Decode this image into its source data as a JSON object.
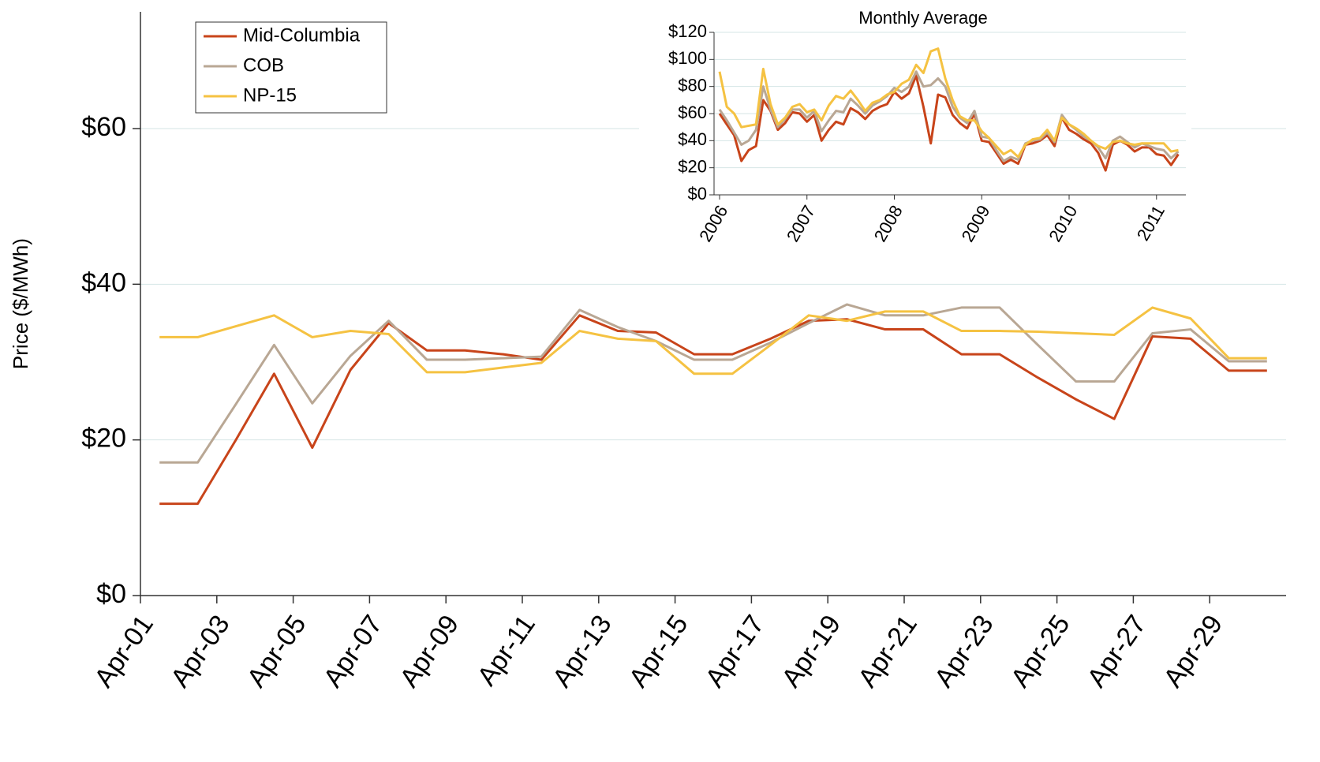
{
  "chart_data": [
    {
      "type": "line",
      "y_label": "Price ($/MWh)",
      "categories": [
        "Apr-01",
        null,
        "Apr-03",
        null,
        "Apr-05",
        null,
        "Apr-07",
        null,
        "Apr-09",
        null,
        "Apr-11",
        null,
        "Apr-13",
        null,
        "Apr-15",
        null,
        "Apr-17",
        null,
        "Apr-19",
        null,
        "Apr-21",
        null,
        "Apr-23",
        null,
        "Apr-25",
        null,
        "Apr-27",
        null,
        "Apr-29",
        null
      ],
      "series": [
        {
          "name": "Mid-Columbia",
          "color": "#c8441a",
          "values": [
            11.8,
            11.8,
            20,
            28.5,
            19,
            29,
            35,
            31.5,
            31.5,
            31,
            30.3,
            36,
            34,
            33.8,
            31,
            31,
            33,
            35.3,
            35.5,
            34.2,
            34.2,
            31,
            31,
            28,
            25.2,
            22.7,
            33.3,
            33,
            28.9,
            28.9
          ]
        },
        {
          "name": "COB",
          "color": "#b9a794",
          "values": [
            17.1,
            17.1,
            24.6,
            32.2,
            24.7,
            30.8,
            35.3,
            30.3,
            30.3,
            30.5,
            30.7,
            36.7,
            34.5,
            32.7,
            30.3,
            30.3,
            32.5,
            35,
            37.4,
            36,
            36,
            37,
            37,
            32.2,
            27.5,
            27.5,
            33.7,
            34.2,
            30.1,
            30.1
          ]
        },
        {
          "name": "NP-15",
          "color": "#f5c242",
          "values": [
            33.2,
            33.2,
            34.6,
            36,
            33.2,
            34,
            33.6,
            28.7,
            28.7,
            29.3,
            29.9,
            34,
            33,
            32.7,
            28.5,
            28.5,
            32.2,
            36,
            35.3,
            36.5,
            36.5,
            34,
            34,
            33.9,
            33.7,
            33.5,
            37,
            35.6,
            30.5,
            30.5
          ]
        }
      ],
      "ylim": [
        0,
        75
      ],
      "yticks": [
        {
          "value": 0,
          "label": "$0"
        },
        {
          "value": 20,
          "label": "$20"
        },
        {
          "value": 40,
          "label": "$40"
        },
        {
          "value": 60,
          "label": "$60"
        }
      ],
      "grid": true,
      "legend": "upper-left"
    },
    {
      "type": "line",
      "title": "Monthly Average",
      "x": [
        2006,
        2006.083,
        2006.167,
        2006.25,
        2006.333,
        2006.417,
        2006.5,
        2006.583,
        2006.667,
        2006.75,
        2006.833,
        2006.917,
        2007,
        2007.083,
        2007.167,
        2007.25,
        2007.333,
        2007.417,
        2007.5,
        2007.583,
        2007.667,
        2007.75,
        2007.833,
        2007.917,
        2008,
        2008.083,
        2008.167,
        2008.25,
        2008.333,
        2008.417,
        2008.5,
        2008.583,
        2008.667,
        2008.75,
        2008.833,
        2008.917,
        2009,
        2009.083,
        2009.167,
        2009.25,
        2009.333,
        2009.417,
        2009.5,
        2009.583,
        2009.667,
        2009.75,
        2009.833,
        2009.917,
        2010,
        2010.083,
        2010.167,
        2010.25,
        2010.333,
        2010.417,
        2010.5,
        2010.583,
        2010.667,
        2010.75,
        2010.833,
        2010.917,
        2011,
        2011.083,
        2011.167,
        2011.25
      ],
      "series": [
        {
          "color": "#c8441a",
          "values": [
            60,
            52,
            44,
            25,
            33,
            36,
            70,
            62,
            48,
            53,
            61,
            60,
            54,
            59,
            40,
            48,
            54,
            52,
            64,
            61,
            56,
            62,
            65,
            67,
            76,
            71,
            75,
            88,
            65,
            38,
            74,
            72,
            59,
            53,
            49,
            60,
            40,
            39,
            31,
            23,
            26,
            23,
            37,
            38,
            40,
            44,
            36,
            57,
            48,
            45,
            41,
            38,
            31,
            18,
            37,
            40,
            37,
            32,
            35,
            35,
            30,
            29,
            22,
            30
          ]
        },
        {
          "color": "#b9a794",
          "values": [
            63,
            55,
            46,
            37,
            40,
            48,
            80,
            63,
            50,
            56,
            63,
            63,
            57,
            62,
            47,
            55,
            62,
            61,
            71,
            66,
            60,
            66,
            69,
            73,
            79,
            76,
            80,
            91,
            80,
            81,
            86,
            80,
            65,
            57,
            53,
            62,
            43,
            42,
            33,
            25,
            28,
            26,
            38,
            40,
            41,
            46,
            39,
            59,
            52,
            48,
            43,
            40,
            35,
            27,
            40,
            43,
            39,
            35,
            38,
            36,
            34,
            33,
            27,
            32
          ]
        },
        {
          "color": "#f5c242",
          "values": [
            91,
            65,
            60,
            50,
            51,
            52,
            93,
            67,
            52,
            57,
            65,
            67,
            61,
            63,
            55,
            66,
            73,
            71,
            77,
            70,
            62,
            68,
            70,
            74,
            76,
            82,
            85,
            96,
            90,
            106,
            108,
            86,
            70,
            58,
            55,
            55,
            47,
            42,
            36,
            30,
            33,
            28,
            37,
            41,
            42,
            48,
            40,
            57,
            52,
            49,
            45,
            40,
            36,
            34,
            39,
            40,
            38,
            37,
            38,
            38,
            38,
            38,
            32,
            33
          ]
        }
      ],
      "xlim": [
        2006,
        2011.3
      ],
      "xticks": [
        2006,
        2007,
        2008,
        2009,
        2010,
        2011
      ],
      "ylim": [
        0,
        120
      ],
      "yticks": [
        {
          "value": 0,
          "label": "$0"
        },
        {
          "value": 20,
          "label": "$20"
        },
        {
          "value": 40,
          "label": "$40"
        },
        {
          "value": 60,
          "label": "$60"
        },
        {
          "value": 80,
          "label": "$80"
        },
        {
          "value": 100,
          "label": "$100"
        },
        {
          "value": 120,
          "label": "$120"
        }
      ],
      "grid": true
    }
  ]
}
